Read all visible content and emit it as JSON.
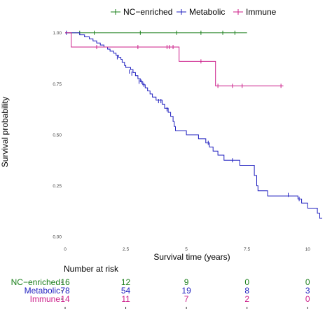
{
  "chart_data": {
    "type": "line",
    "xlabel": "Survival time (years)",
    "ylabel": "Survival probability",
    "xlim": [
      0,
      10.6
    ],
    "ylim": [
      -0.02,
      1.03
    ],
    "x_ticks": [
      0,
      2.5,
      5,
      7.5,
      10
    ],
    "x_tick_labels": [
      "0",
      "2.5",
      "5",
      "7.5",
      "10"
    ],
    "y_ticks": [
      0,
      0.25,
      0.5,
      0.75,
      1.0
    ],
    "y_tick_labels": [
      "0.00",
      "0.25",
      "0.50",
      "0.75",
      "1.00"
    ],
    "legend_position": "top",
    "series": [
      {
        "name": "NC−enriched",
        "color": "#1a7f1a",
        "steps": [
          [
            0,
            1.0
          ],
          [
            7.5,
            1.0
          ]
        ],
        "censors": [
          [
            0.6,
            1.0
          ],
          [
            1.2,
            1.0
          ],
          [
            3.1,
            1.0
          ],
          [
            4.6,
            1.0
          ],
          [
            5.6,
            1.0
          ],
          [
            6.5,
            1.0
          ],
          [
            7.0,
            1.0
          ]
        ]
      },
      {
        "name": "Metabolic",
        "color": "#1f1fbf",
        "steps": [
          [
            0,
            1.0
          ],
          [
            0.6,
            0.99
          ],
          [
            0.8,
            0.98
          ],
          [
            1.0,
            0.97
          ],
          [
            1.15,
            0.96
          ],
          [
            1.3,
            0.95
          ],
          [
            1.45,
            0.94
          ],
          [
            1.6,
            0.93
          ],
          [
            1.75,
            0.92
          ],
          [
            1.85,
            0.91
          ],
          [
            2.0,
            0.9
          ],
          [
            2.1,
            0.89
          ],
          [
            2.2,
            0.88
          ],
          [
            2.3,
            0.87
          ],
          [
            2.35,
            0.855
          ],
          [
            2.45,
            0.84
          ],
          [
            2.5,
            0.83
          ],
          [
            2.7,
            0.82
          ],
          [
            2.8,
            0.805
          ],
          [
            2.9,
            0.79
          ],
          [
            3.0,
            0.775
          ],
          [
            3.1,
            0.76
          ],
          [
            3.2,
            0.745
          ],
          [
            3.3,
            0.73
          ],
          [
            3.4,
            0.715
          ],
          [
            3.5,
            0.7
          ],
          [
            3.6,
            0.685
          ],
          [
            3.75,
            0.67
          ],
          [
            4.0,
            0.65
          ],
          [
            4.1,
            0.63
          ],
          [
            4.25,
            0.61
          ],
          [
            4.35,
            0.59
          ],
          [
            4.45,
            0.565
          ],
          [
            4.5,
            0.54
          ],
          [
            4.55,
            0.52
          ],
          [
            5.0,
            0.5
          ],
          [
            5.5,
            0.48
          ],
          [
            5.8,
            0.46
          ],
          [
            5.95,
            0.44
          ],
          [
            6.1,
            0.42
          ],
          [
            6.3,
            0.4
          ],
          [
            6.55,
            0.375
          ],
          [
            7.2,
            0.35
          ],
          [
            7.8,
            0.3
          ],
          [
            7.9,
            0.25
          ],
          [
            7.95,
            0.225
          ],
          [
            8.35,
            0.2
          ],
          [
            9.6,
            0.185
          ],
          [
            9.75,
            0.165
          ],
          [
            10.0,
            0.14
          ],
          [
            10.4,
            0.115
          ],
          [
            10.5,
            0.09
          ],
          [
            10.6,
            0.09
          ]
        ],
        "censors": [
          [
            0.05,
            1.0
          ],
          [
            2.15,
            0.88
          ],
          [
            2.65,
            0.81
          ],
          [
            2.75,
            0.8
          ],
          [
            3.05,
            0.76
          ],
          [
            3.15,
            0.76
          ],
          [
            3.25,
            0.745
          ],
          [
            3.85,
            0.665
          ],
          [
            3.95,
            0.665
          ],
          [
            4.2,
            0.625
          ],
          [
            5.9,
            0.46
          ],
          [
            6.9,
            0.375
          ],
          [
            9.2,
            0.205
          ],
          [
            9.65,
            0.185
          ]
        ]
      },
      {
        "name": "Immune",
        "color": "#cc1f8a",
        "steps": [
          [
            0,
            1.0
          ],
          [
            0.25,
            0.93
          ],
          [
            4.6,
            0.93
          ],
          [
            4.7,
            0.86
          ],
          [
            6.1,
            0.86
          ],
          [
            6.2,
            0.74
          ],
          [
            9.0,
            0.74
          ]
        ],
        "censors": [
          [
            1.3,
            0.93
          ],
          [
            3.0,
            0.93
          ],
          [
            4.2,
            0.93
          ],
          [
            4.3,
            0.93
          ],
          [
            4.45,
            0.93
          ],
          [
            5.6,
            0.86
          ],
          [
            6.3,
            0.74
          ],
          [
            6.9,
            0.74
          ],
          [
            7.3,
            0.74
          ],
          [
            8.9,
            0.74
          ]
        ]
      }
    ],
    "risk_table": {
      "title": "Number at risk",
      "times": [
        0,
        2.5,
        5,
        7.5,
        10
      ],
      "rows": [
        {
          "name": "NC−enriched",
          "color": "#1a7f1a",
          "values": [
            "16",
            "12",
            "9",
            "0",
            "0"
          ]
        },
        {
          "name": "Metabolic",
          "color": "#1f1fbf",
          "values": [
            "78",
            "54",
            "19",
            "8",
            "3"
          ]
        },
        {
          "name": "Immune",
          "color": "#cc1f8a",
          "values": [
            "14",
            "11",
            "7",
            "2",
            "0"
          ]
        }
      ]
    }
  }
}
